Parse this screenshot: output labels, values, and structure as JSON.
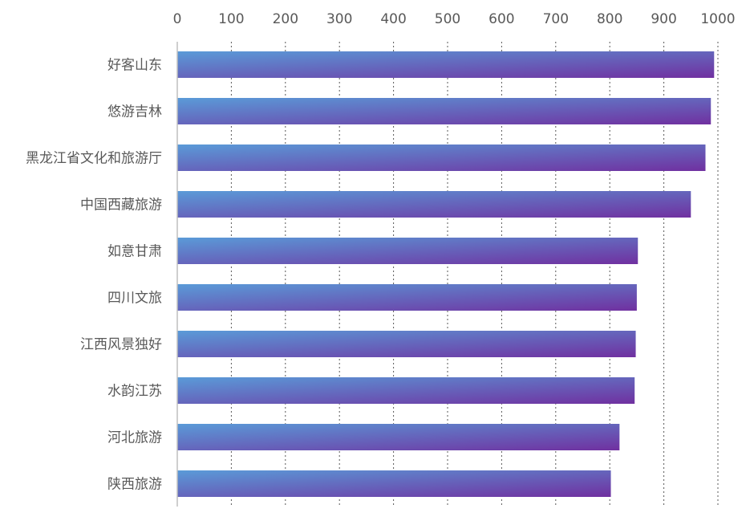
{
  "chart_data": {
    "type": "bar",
    "orientation": "horizontal",
    "categories": [
      "好客山东",
      "悠游吉林",
      "黑龙江省文化和旅游厅",
      "中国西藏旅游",
      "如意甘肃",
      "四川文旅",
      "江西风景独好",
      "水韵江苏",
      "河北旅游",
      "陕西旅游"
    ],
    "values": [
      993,
      987,
      977,
      950,
      852,
      850,
      848,
      846,
      818,
      802
    ],
    "xlim": [
      0,
      1000
    ],
    "xticks": [
      "0",
      "100",
      "200",
      "300",
      "400",
      "500",
      "600",
      "700",
      "800",
      "900",
      "1000"
    ],
    "xaxis_position": "top",
    "grid": "vertical dotted",
    "bar_gradient": [
      "#5a9bd8",
      "#7030a0"
    ],
    "colors": {
      "tick_text": "#595959",
      "gridline": "#595959",
      "axis_line": "#bfbfbf"
    },
    "title": "",
    "xlabel": "",
    "ylabel": ""
  }
}
